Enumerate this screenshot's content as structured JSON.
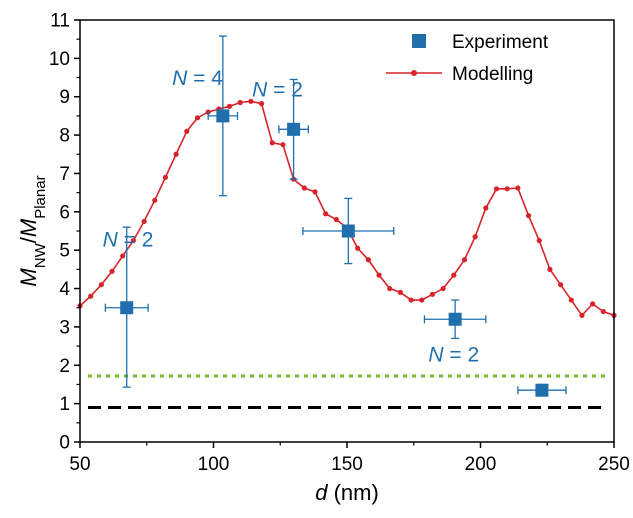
{
  "chart_data": {
    "type": "scatter",
    "xlabel": {
      "var": "d",
      "unit": " (nm)"
    },
    "ylabel": {
      "var1": "M",
      "sub1": "NW",
      "var2": "M",
      "sub2": "Planar"
    },
    "xlim": [
      50,
      250
    ],
    "ylim": [
      0,
      11
    ],
    "x_ticks": [
      50,
      100,
      150,
      200,
      250
    ],
    "y_ticks": [
      0,
      1,
      2,
      3,
      4,
      5,
      6,
      7,
      8,
      9,
      10,
      11
    ],
    "legend": {
      "placement": "top-right",
      "entries": [
        {
          "label": "Experiment",
          "marker": "square",
          "color": "#1f6fad"
        },
        {
          "label": "Modelling",
          "marker": "line-dot",
          "color": "#d8232a"
        }
      ]
    },
    "series": [
      {
        "name": "Experiment",
        "color": "#1f6fad",
        "points": [
          {
            "x": 67.5,
            "y": 3.5,
            "xerr": 8,
            "yerr_low": 2.07,
            "yerr_high": 2.1
          },
          {
            "x": 103.5,
            "y": 8.5,
            "xerr": 5.5,
            "yerr_low": 2.08,
            "yerr_high": 2.08
          },
          {
            "x": 130,
            "y": 8.15,
            "xerr": 5.5,
            "yerr_low": 1.3,
            "yerr_high": 1.3
          },
          {
            "x": 150.5,
            "y": 5.5,
            "xerr": 17,
            "yerr_low": 0.85,
            "yerr_high": 0.85
          },
          {
            "x": 190.5,
            "y": 3.2,
            "xerr": 11.5,
            "yerr_low": 0.5,
            "yerr_high": 0.5
          },
          {
            "x": 223,
            "y": 1.35,
            "xerr": 9,
            "yerr_low": 0.15,
            "yerr_high": 0.15
          }
        ]
      },
      {
        "name": "Modelling",
        "color": "#d8232a",
        "x": [
          50,
          54,
          58,
          62,
          66,
          70,
          74,
          78,
          82,
          86,
          90,
          94,
          98,
          102,
          106,
          110,
          114,
          118,
          122,
          126,
          130,
          134,
          138,
          142,
          146,
          150,
          154,
          158,
          162,
          166,
          170,
          174,
          178,
          182,
          186,
          190,
          194,
          198,
          202,
          206,
          210,
          214,
          218,
          222,
          226,
          230,
          234,
          238,
          242,
          246,
          250
        ],
        "y": [
          3.55,
          3.8,
          4.1,
          4.45,
          4.85,
          5.25,
          5.75,
          6.3,
          6.9,
          7.5,
          8.1,
          8.45,
          8.6,
          8.68,
          8.75,
          8.85,
          8.88,
          8.82,
          7.8,
          7.75,
          6.85,
          6.62,
          6.52,
          5.95,
          5.8,
          5.58,
          5.05,
          4.75,
          4.35,
          4.0,
          3.9,
          3.7,
          3.7,
          3.85,
          4.0,
          4.35,
          4.75,
          5.35,
          6.1,
          6.6,
          6.6,
          6.62,
          5.9,
          5.25,
          4.5,
          4.1,
          3.7,
          3.3,
          3.6,
          3.4,
          3.3
        ]
      }
    ],
    "reference_lines": [
      {
        "y": 1.72,
        "style": "dotted",
        "color": "#7ab929"
      },
      {
        "y": 0.9,
        "style": "dashed",
        "color": "#000000"
      }
    ],
    "annotations": [
      {
        "id": "n2a",
        "prefix": "N",
        "text": " = 2",
        "x": 68,
        "y": 5.1,
        "color": "#1f6fad"
      },
      {
        "id": "n4",
        "prefix": "N",
        "text": " = 4",
        "x": 94,
        "y": 9.3,
        "color": "#1f6fad"
      },
      {
        "id": "n2b",
        "prefix": "N",
        "text": " = 2",
        "x": 124,
        "y": 9.0,
        "color": "#1f6fad"
      },
      {
        "id": "n2c",
        "prefix": "N",
        "text": " = 2",
        "x": 190,
        "y": 2.1,
        "color": "#1f6fad"
      }
    ]
  }
}
